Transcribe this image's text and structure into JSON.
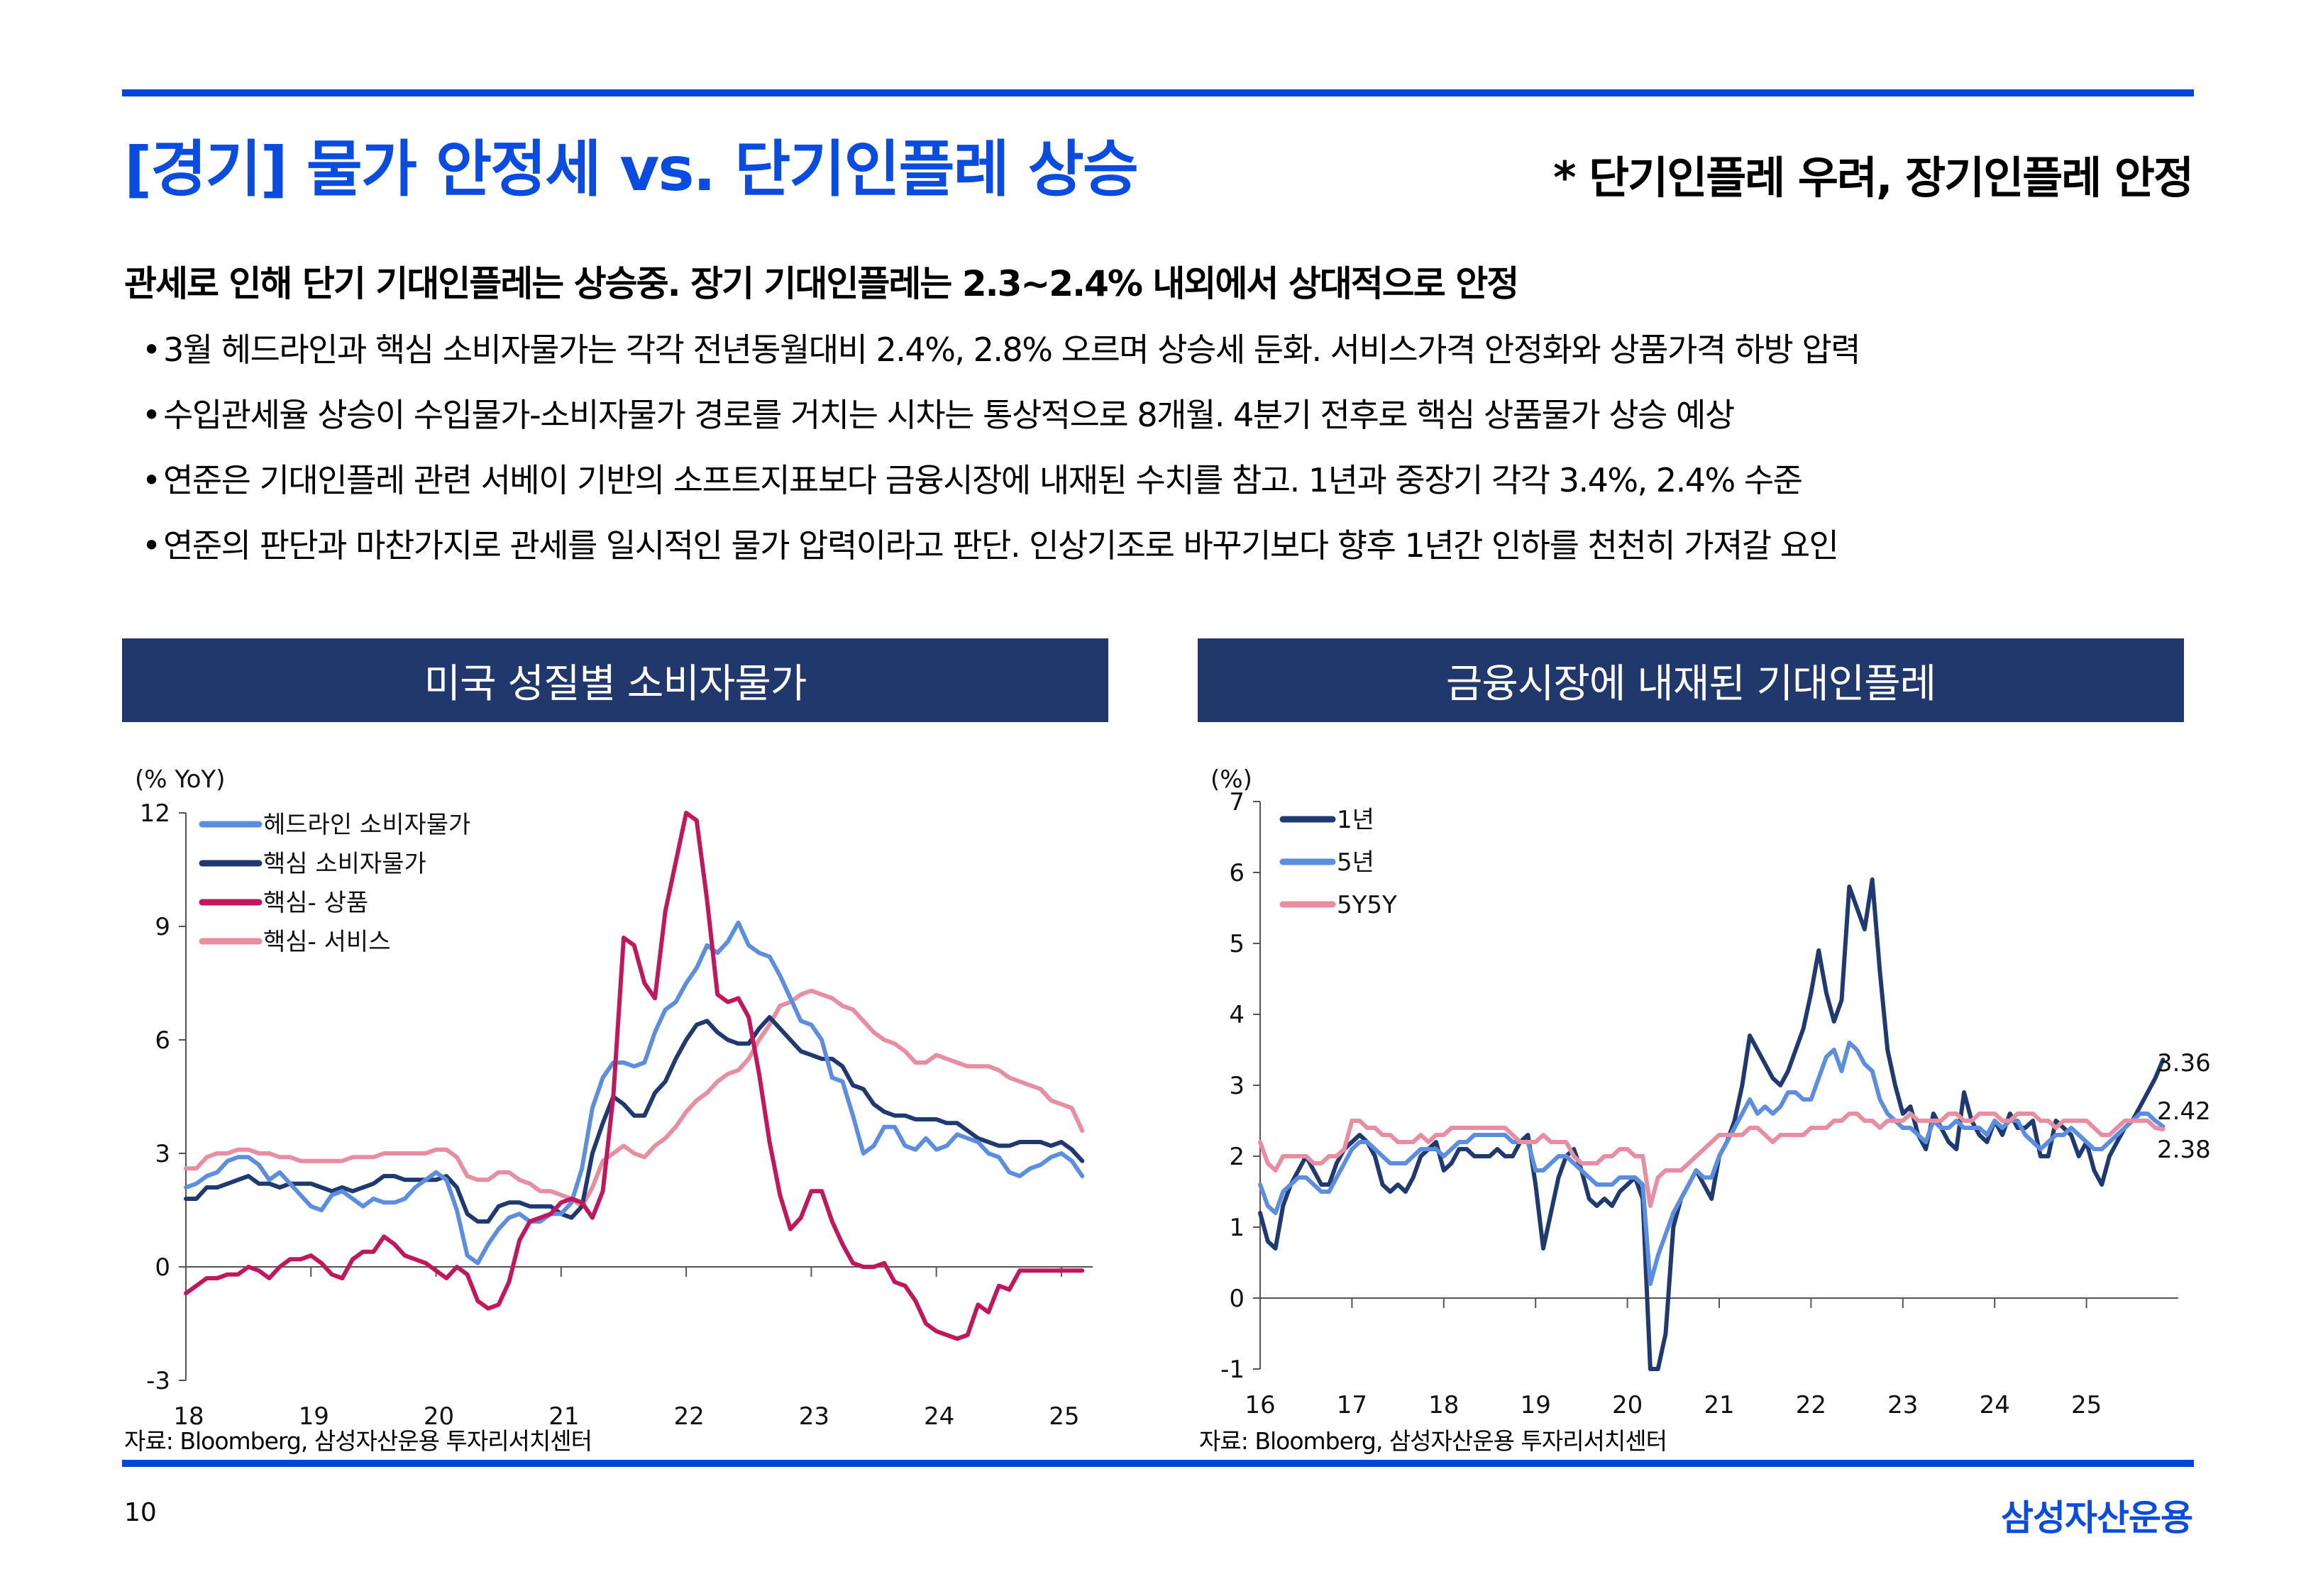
{
  "header": {
    "title": "[경기] 물가 안정세 vs. 단기인플레 상승",
    "tagline": "* 단기인플레 우려, 장기인플레 안정"
  },
  "headline": "관세로 인해 단기 기대인플레는 상승중. 장기 기대인플레는 2.3~2.4% 내외에서 상대적으로 안정",
  "bullets": [
    "3월 헤드라인과 핵심 소비자물가는 각각 전년동월대비 2.4%, 2.8% 오르며 상승세 둔화. 서비스가격 안정화와 상품가격 하방 압력",
    "수입관세율 상승이 수입물가-소비자물가 경로를 거치는 시차는 통상적으로 8개월. 4분기 전후로 핵심 상품물가 상승 예상",
    "연준은 기대인플레 관련 서베이 기반의 소프트지표보다 금융시장에 내재된 수치를 참고. 1년과 중장기 각각 3.4%, 2.4% 수준",
    "연준의 판단과 마찬가지로 관세를 일시적인 물가 압력이라고 판단. 인상기조로 바꾸기보다 향후 1년간 인하를 천천히 가져갈 요인"
  ],
  "bullet_glyph": "•",
  "footer": {
    "page_number": "10",
    "brand": "삼성자산운용"
  },
  "colors": {
    "accent": "#0047d9",
    "panel_header": "#20386c",
    "headline_cpi": "#5b8ee0",
    "core_cpi": "#1f3a70",
    "core_goods": "#c2185b",
    "core_services": "#e88ea0",
    "be_1y": "#1f3a70",
    "be_5y": "#5b8ee0",
    "be_5y5y": "#e88ea0"
  },
  "chart_data": [
    {
      "type": "line",
      "title": "미국 성질별 소비자물가",
      "ylabel": "(% YoY)",
      "xlabel": "",
      "source": "자료: Bloomberg, 삼성자산운용 투자리서치센터",
      "x_start": "2018-01",
      "x_frequency": "monthly",
      "xlim": [
        2018.0,
        2025.25
      ],
      "ylim": [
        -3,
        12
      ],
      "yticks": [
        -3,
        0,
        3,
        6,
        9,
        12
      ],
      "xticks": [
        2018,
        2019,
        2020,
        2021,
        2022,
        2023,
        2024,
        2025
      ],
      "xtick_labels": [
        "18",
        "19",
        "20",
        "21",
        "22",
        "23",
        "24",
        "25"
      ],
      "legend_position": "top-left",
      "grid": false,
      "series": [
        {
          "name": "헤드라인 소비자물가",
          "color_key": "headline_cpi",
          "values": [
            2.1,
            2.2,
            2.4,
            2.5,
            2.8,
            2.9,
            2.9,
            2.7,
            2.3,
            2.5,
            2.2,
            1.9,
            1.6,
            1.5,
            1.9,
            2.0,
            1.8,
            1.6,
            1.8,
            1.7,
            1.7,
            1.8,
            2.1,
            2.3,
            2.5,
            2.3,
            1.5,
            0.3,
            0.1,
            0.6,
            1.0,
            1.3,
            1.4,
            1.2,
            1.2,
            1.4,
            1.4,
            1.7,
            2.6,
            4.2,
            5.0,
            5.4,
            5.4,
            5.3,
            5.4,
            6.2,
            6.8,
            7.0,
            7.5,
            7.9,
            8.5,
            8.3,
            8.6,
            9.1,
            8.5,
            8.3,
            8.2,
            7.7,
            7.1,
            6.5,
            6.4,
            6.0,
            5.0,
            4.9,
            4.0,
            3.0,
            3.2,
            3.7,
            3.7,
            3.2,
            3.1,
            3.4,
            3.1,
            3.2,
            3.5,
            3.4,
            3.3,
            3.0,
            2.9,
            2.5,
            2.4,
            2.6,
            2.7,
            2.9,
            3.0,
            2.8,
            2.4
          ]
        },
        {
          "name": "핵심 소비자물가",
          "color_key": "core_cpi",
          "values": [
            1.8,
            1.8,
            2.1,
            2.1,
            2.2,
            2.3,
            2.4,
            2.2,
            2.2,
            2.1,
            2.2,
            2.2,
            2.2,
            2.1,
            2.0,
            2.1,
            2.0,
            2.1,
            2.2,
            2.4,
            2.4,
            2.3,
            2.3,
            2.3,
            2.3,
            2.4,
            2.1,
            1.4,
            1.2,
            1.2,
            1.6,
            1.7,
            1.7,
            1.6,
            1.6,
            1.6,
            1.4,
            1.3,
            1.6,
            3.0,
            3.8,
            4.5,
            4.3,
            4.0,
            4.0,
            4.6,
            4.9,
            5.5,
            6.0,
            6.4,
            6.5,
            6.2,
            6.0,
            5.9,
            5.9,
            6.3,
            6.6,
            6.3,
            6.0,
            5.7,
            5.6,
            5.5,
            5.5,
            5.3,
            4.8,
            4.7,
            4.3,
            4.1,
            4.0,
            4.0,
            3.9,
            3.9,
            3.9,
            3.8,
            3.8,
            3.6,
            3.4,
            3.3,
            3.2,
            3.2,
            3.3,
            3.3,
            3.3,
            3.2,
            3.3,
            3.1,
            2.8
          ]
        },
        {
          "name": "핵심- 상품",
          "color_key": "core_goods",
          "values": [
            -0.7,
            -0.5,
            -0.3,
            -0.3,
            -0.2,
            -0.2,
            0.0,
            -0.1,
            -0.3,
            0.0,
            0.2,
            0.2,
            0.3,
            0.1,
            -0.2,
            -0.3,
            0.2,
            0.4,
            0.4,
            0.8,
            0.6,
            0.3,
            0.2,
            0.1,
            -0.1,
            -0.3,
            0.0,
            -0.2,
            -0.9,
            -1.1,
            -1.0,
            -0.4,
            0.7,
            1.2,
            1.3,
            1.4,
            1.7,
            1.8,
            1.7,
            1.3,
            2.0,
            4.5,
            8.7,
            8.5,
            7.5,
            7.1,
            9.4,
            10.7,
            12.0,
            11.8,
            9.7,
            7.2,
            7.0,
            7.1,
            6.6,
            5.1,
            3.3,
            1.9,
            1.0,
            1.3,
            2.0,
            2.0,
            1.2,
            0.6,
            0.1,
            0.0,
            0.0,
            0.1,
            -0.4,
            -0.5,
            -0.9,
            -1.5,
            -1.7,
            -1.8,
            -1.9,
            -1.8,
            -1.0,
            -1.2,
            -0.5,
            -0.6,
            -0.1,
            -0.1,
            -0.1,
            -0.1,
            -0.1,
            -0.1,
            -0.1
          ]
        },
        {
          "name": "핵심- 서비스",
          "color_key": "core_services",
          "values": [
            2.6,
            2.6,
            2.9,
            3.0,
            3.0,
            3.1,
            3.1,
            3.0,
            3.0,
            2.9,
            2.9,
            2.8,
            2.8,
            2.8,
            2.8,
            2.8,
            2.9,
            2.9,
            2.9,
            3.0,
            3.0,
            3.0,
            3.0,
            3.0,
            3.1,
            3.1,
            2.9,
            2.4,
            2.3,
            2.3,
            2.5,
            2.5,
            2.3,
            2.2,
            2.0,
            2.0,
            1.9,
            1.8,
            1.6,
            2.1,
            2.8,
            3.0,
            3.2,
            3.0,
            2.9,
            3.2,
            3.4,
            3.7,
            4.1,
            4.4,
            4.6,
            4.9,
            5.1,
            5.2,
            5.5,
            6.0,
            6.4,
            6.9,
            7.0,
            7.2,
            7.3,
            7.2,
            7.1,
            6.9,
            6.8,
            6.5,
            6.2,
            6.0,
            5.9,
            5.7,
            5.4,
            5.4,
            5.6,
            5.5,
            5.4,
            5.3,
            5.3,
            5.3,
            5.2,
            5.0,
            4.9,
            4.8,
            4.7,
            4.4,
            4.3,
            4.2,
            3.6
          ]
        }
      ]
    },
    {
      "type": "line",
      "title": "금융시장에 내재된 기대인플레",
      "ylabel": "(%)",
      "xlabel": "",
      "source": "자료: Bloomberg, 삼성자산운용 투자리서치센터",
      "x_start": "2016-01",
      "x_frequency": "monthly (sampled from daily)",
      "xlim": [
        2016.0,
        2026.0
      ],
      "ylim": [
        -1,
        7
      ],
      "yticks": [
        -1,
        0,
        1,
        2,
        3,
        4,
        5,
        6,
        7
      ],
      "xticks": [
        2016,
        2017,
        2018,
        2019,
        2020,
        2021,
        2022,
        2023,
        2024,
        2025
      ],
      "xtick_labels": [
        "16",
        "17",
        "18",
        "19",
        "20",
        "21",
        "22",
        "23",
        "24",
        "25"
      ],
      "legend_position": "top-left",
      "grid": false,
      "end_labels": [
        "3.36",
        "2.42",
        "2.38"
      ],
      "series": [
        {
          "name": "1년",
          "color_key": "be_1y",
          "last_value": 3.36,
          "values": [
            1.2,
            0.8,
            0.7,
            1.3,
            1.6,
            1.8,
            2.0,
            1.8,
            1.6,
            1.6,
            1.9,
            2.1,
            2.2,
            2.3,
            2.2,
            2.0,
            1.6,
            1.5,
            1.6,
            1.5,
            1.7,
            2.0,
            2.1,
            2.2,
            1.8,
            1.9,
            2.1,
            2.1,
            2.0,
            2.0,
            2.0,
            2.1,
            2.0,
            2.0,
            2.2,
            2.3,
            1.6,
            0.7,
            1.2,
            1.7,
            2.0,
            2.1,
            1.8,
            1.4,
            1.3,
            1.4,
            1.3,
            1.5,
            1.6,
            1.7,
            1.4,
            -1.0,
            -1.0,
            -0.5,
            1.0,
            1.4,
            1.6,
            1.8,
            1.6,
            1.4,
            2.0,
            2.2,
            2.5,
            3.0,
            3.7,
            3.5,
            3.3,
            3.1,
            3.0,
            3.2,
            3.5,
            3.8,
            4.3,
            4.9,
            4.3,
            3.9,
            4.2,
            5.8,
            5.5,
            5.2,
            5.9,
            4.6,
            3.5,
            3.0,
            2.6,
            2.7,
            2.3,
            2.1,
            2.6,
            2.4,
            2.2,
            2.1,
            2.9,
            2.5,
            2.3,
            2.2,
            2.5,
            2.3,
            2.6,
            2.4,
            2.4,
            2.5,
            2.0,
            2.0,
            2.5,
            2.4,
            2.3,
            2.0,
            2.2,
            1.8,
            1.6,
            2.0,
            2.2,
            2.4,
            2.5,
            2.7,
            2.9,
            3.1,
            3.36
          ]
        },
        {
          "name": "5년",
          "color_key": "be_5y",
          "last_value": 2.42,
          "values": [
            1.6,
            1.3,
            1.2,
            1.5,
            1.6,
            1.7,
            1.7,
            1.6,
            1.5,
            1.5,
            1.7,
            1.9,
            2.1,
            2.2,
            2.2,
            2.1,
            2.0,
            1.9,
            1.9,
            1.9,
            2.0,
            2.1,
            2.1,
            2.1,
            2.0,
            2.1,
            2.2,
            2.2,
            2.3,
            2.3,
            2.3,
            2.3,
            2.3,
            2.2,
            2.2,
            2.2,
            1.8,
            1.8,
            1.9,
            2.0,
            2.0,
            1.9,
            1.8,
            1.7,
            1.6,
            1.6,
            1.6,
            1.7,
            1.7,
            1.7,
            1.6,
            0.2,
            0.6,
            0.9,
            1.2,
            1.4,
            1.6,
            1.8,
            1.7,
            1.7,
            2.0,
            2.2,
            2.4,
            2.6,
            2.8,
            2.6,
            2.7,
            2.6,
            2.7,
            2.9,
            2.9,
            2.8,
            2.8,
            3.1,
            3.4,
            3.5,
            3.2,
            3.6,
            3.5,
            3.3,
            3.2,
            2.8,
            2.6,
            2.5,
            2.4,
            2.4,
            2.3,
            2.2,
            2.5,
            2.4,
            2.4,
            2.5,
            2.4,
            2.4,
            2.4,
            2.3,
            2.5,
            2.4,
            2.5,
            2.5,
            2.3,
            2.2,
            2.1,
            2.2,
            2.3,
            2.3,
            2.4,
            2.3,
            2.2,
            2.1,
            2.1,
            2.2,
            2.3,
            2.4,
            2.5,
            2.6,
            2.6,
            2.5,
            2.42
          ]
        },
        {
          "name": "5Y5Y",
          "color_key": "be_5y5y",
          "last_value": 2.38,
          "values": [
            2.2,
            1.9,
            1.8,
            2.0,
            2.0,
            2.0,
            2.0,
            1.9,
            1.9,
            2.0,
            2.0,
            2.1,
            2.5,
            2.5,
            2.4,
            2.4,
            2.3,
            2.3,
            2.2,
            2.2,
            2.2,
            2.3,
            2.2,
            2.3,
            2.3,
            2.4,
            2.4,
            2.4,
            2.4,
            2.4,
            2.4,
            2.4,
            2.4,
            2.3,
            2.2,
            2.2,
            2.2,
            2.3,
            2.2,
            2.2,
            2.2,
            2.0,
            1.9,
            1.9,
            1.9,
            2.0,
            2.0,
            2.1,
            2.1,
            2.0,
            2.0,
            1.3,
            1.7,
            1.8,
            1.8,
            1.8,
            1.9,
            2.0,
            2.1,
            2.2,
            2.3,
            2.3,
            2.3,
            2.3,
            2.4,
            2.4,
            2.3,
            2.2,
            2.3,
            2.3,
            2.3,
            2.3,
            2.4,
            2.4,
            2.4,
            2.5,
            2.5,
            2.6,
            2.6,
            2.5,
            2.5,
            2.4,
            2.5,
            2.5,
            2.5,
            2.6,
            2.5,
            2.5,
            2.5,
            2.5,
            2.6,
            2.6,
            2.5,
            2.5,
            2.6,
            2.6,
            2.6,
            2.5,
            2.5,
            2.6,
            2.6,
            2.6,
            2.5,
            2.5,
            2.4,
            2.5,
            2.5,
            2.5,
            2.5,
            2.4,
            2.3,
            2.3,
            2.4,
            2.5,
            2.5,
            2.5,
            2.5,
            2.4,
            2.38
          ]
        }
      ]
    }
  ]
}
